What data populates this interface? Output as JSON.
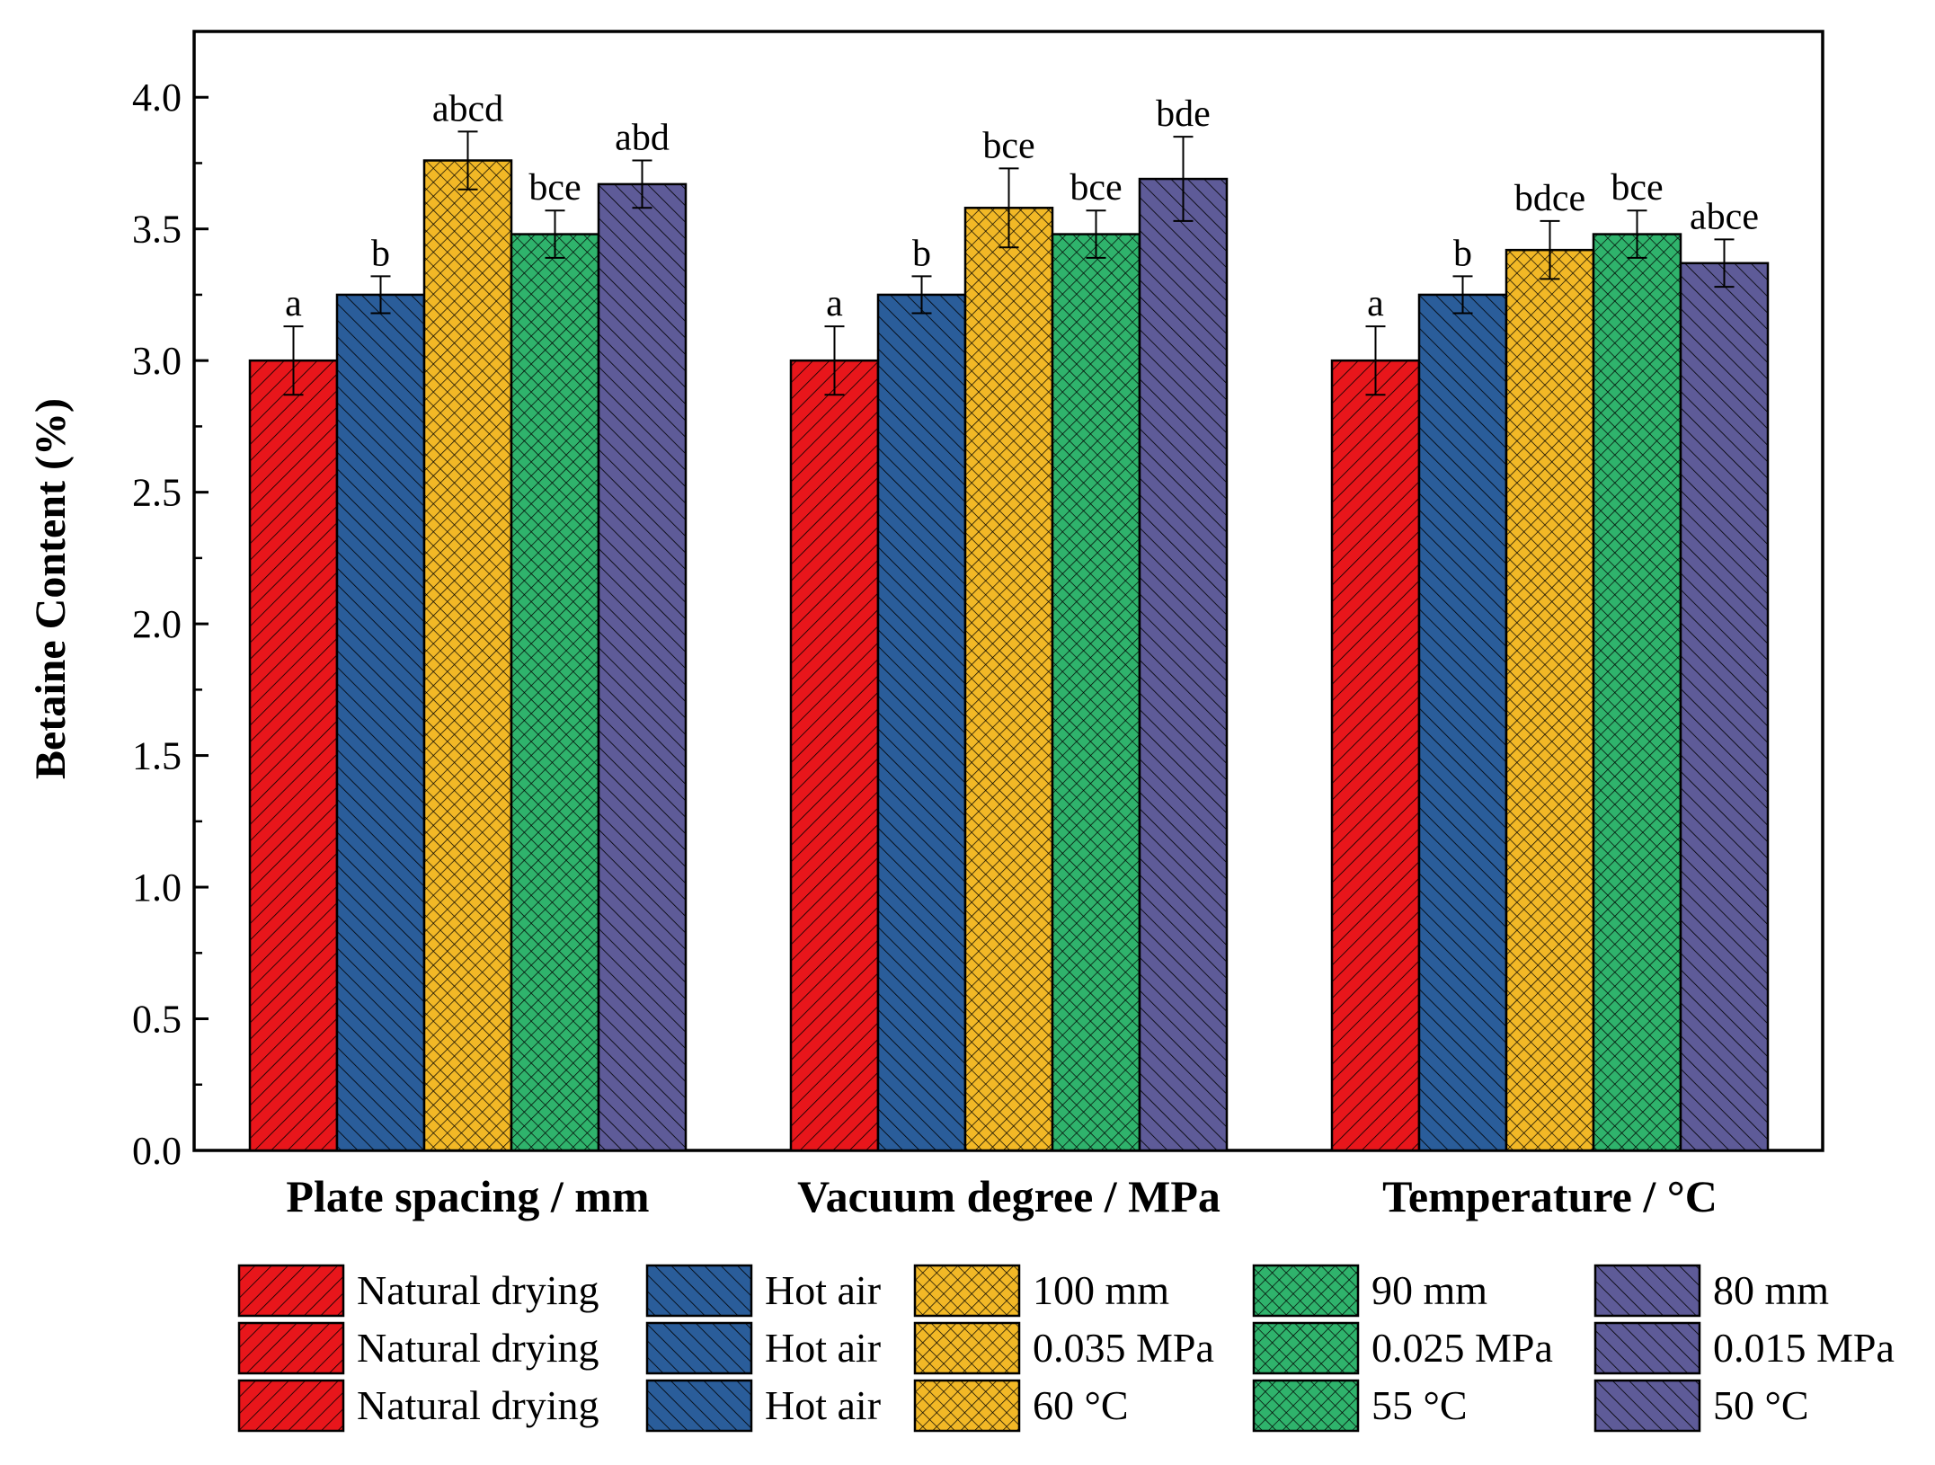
{
  "chart_data": {
    "type": "bar",
    "ylabel": "Betaine  Content (%)",
    "ylim": [
      0,
      4.25
    ],
    "yticks": [
      "0.0",
      "0.5",
      "1.0",
      "1.5",
      "2.0",
      "2.5",
      "3.0",
      "3.5",
      "4.0"
    ],
    "groups": [
      {
        "name": "Plate spacing / mm",
        "bars": [
          {
            "legend": "Natural drying",
            "value": 3.0,
            "error": 0.13,
            "label": "a",
            "color": "#e8161b",
            "pattern": "fwd"
          },
          {
            "legend": "Hot air",
            "value": 3.25,
            "error": 0.07,
            "label": "b",
            "color": "#2a5d9a",
            "pattern": "back"
          },
          {
            "legend": "100 mm",
            "value": 3.76,
            "error": 0.11,
            "label": "abcd",
            "color": "#f2b826",
            "pattern": "cross"
          },
          {
            "legend": "90 mm",
            "value": 3.48,
            "error": 0.09,
            "label": "bce",
            "color": "#2fb36c",
            "pattern": "cross"
          },
          {
            "legend": "80 mm",
            "value": 3.67,
            "error": 0.09,
            "label": "abd",
            "color": "#5e5b98",
            "pattern": "back"
          }
        ]
      },
      {
        "name": "Vacuum degree / MPa",
        "bars": [
          {
            "legend": "Natural drying",
            "value": 3.0,
            "error": 0.13,
            "label": "a",
            "color": "#e8161b",
            "pattern": "fwd"
          },
          {
            "legend": "Hot air",
            "value": 3.25,
            "error": 0.07,
            "label": "b",
            "color": "#2a5d9a",
            "pattern": "back"
          },
          {
            "legend": "0.035 MPa",
            "value": 3.58,
            "error": 0.15,
            "label": "bce",
            "color": "#f2b826",
            "pattern": "cross"
          },
          {
            "legend": "0.025 MPa",
            "value": 3.48,
            "error": 0.09,
            "label": "bce",
            "color": "#2fb36c",
            "pattern": "cross"
          },
          {
            "legend": "0.015 MPa",
            "value": 3.69,
            "error": 0.16,
            "label": "bde",
            "color": "#5e5b98",
            "pattern": "back"
          }
        ]
      },
      {
        "name": "Temperature / °C",
        "bars": [
          {
            "legend": "Natural drying",
            "value": 3.0,
            "error": 0.13,
            "label": "a",
            "color": "#e8161b",
            "pattern": "fwd"
          },
          {
            "legend": "Hot air",
            "value": 3.25,
            "error": 0.07,
            "label": "b",
            "color": "#2a5d9a",
            "pattern": "back"
          },
          {
            "legend": "60 °C",
            "value": 3.42,
            "error": 0.11,
            "label": "bdce",
            "color": "#f2b826",
            "pattern": "cross"
          },
          {
            "legend": "55 °C",
            "value": 3.48,
            "error": 0.09,
            "label": "bce",
            "color": "#2fb36c",
            "pattern": "cross"
          },
          {
            "legend": "50 °C",
            "value": 3.37,
            "error": 0.09,
            "label": "abce",
            "color": "#5e5b98",
            "pattern": "back"
          }
        ]
      }
    ],
    "legend": {
      "placement": "bottom",
      "rows": [
        [
          "Natural drying",
          "Hot air",
          "100 mm",
          "90 mm",
          "80 mm"
        ],
        [
          "Natural drying",
          "Hot air",
          "0.035 MPa",
          "0.025 MPa",
          "0.015 MPa"
        ],
        [
          "Natural drying",
          "Hot air",
          "60 °C",
          "55 °C",
          "50 °C"
        ]
      ]
    }
  }
}
